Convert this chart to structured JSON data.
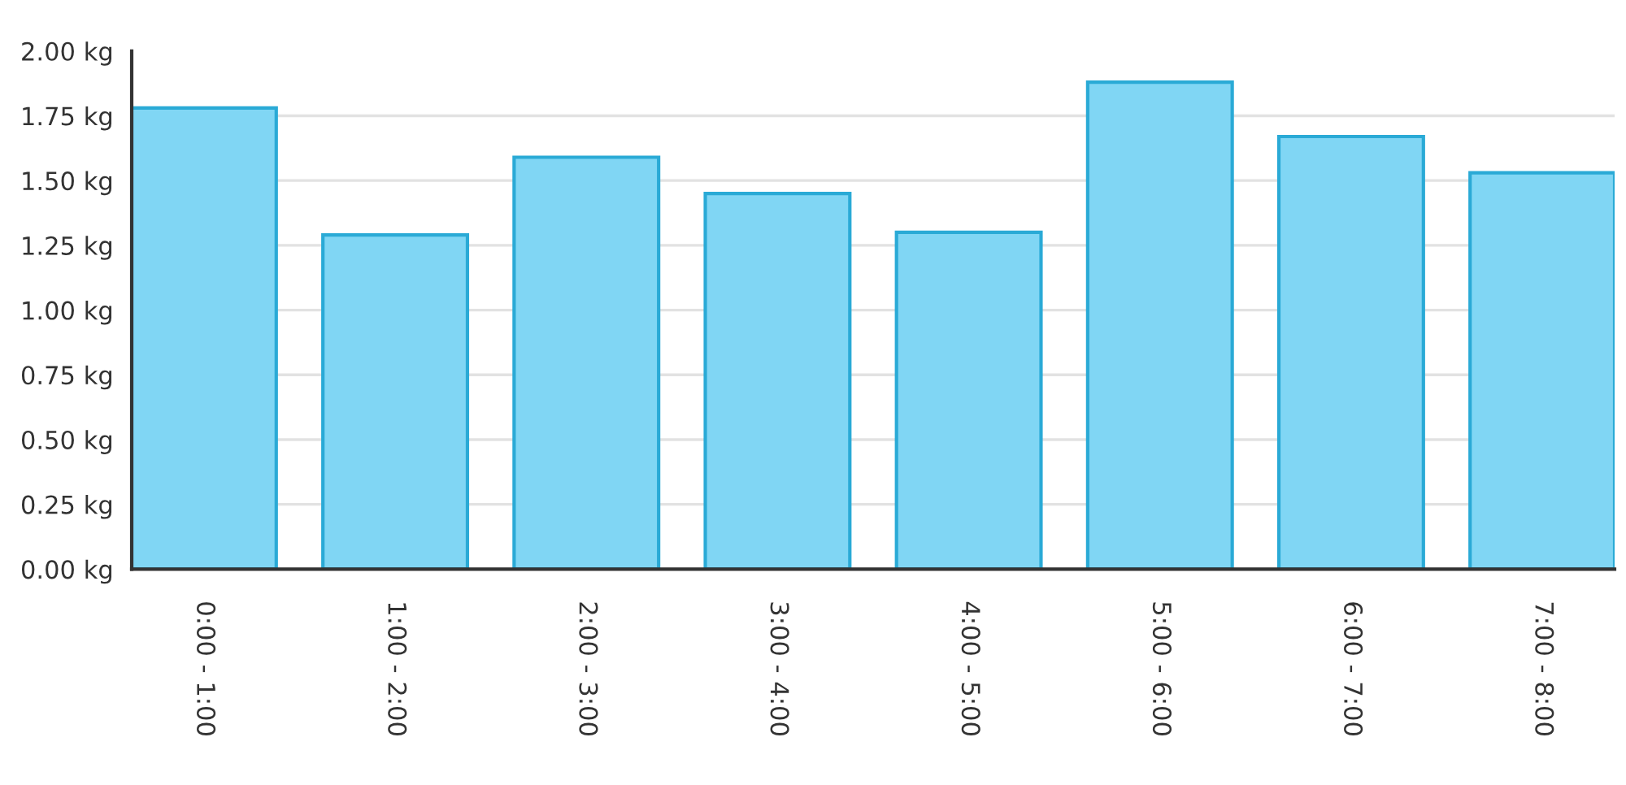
{
  "chart_data": {
    "type": "bar",
    "categories": [
      "0:00 - 1:00",
      "1:00 - 2:00",
      "2:00 - 3:00",
      "3:00 - 4:00",
      "4:00 - 5:00",
      "5:00 - 6:00",
      "6:00 - 7:00",
      "7:00 - 8:00"
    ],
    "values": [
      1.78,
      1.29,
      1.59,
      1.45,
      1.3,
      1.88,
      1.67,
      1.53
    ],
    "color": "#80d6f4",
    "ylim": [
      0,
      2.0
    ],
    "yticks": [
      {
        "value": 0,
        "label": "0.00 kg"
      },
      {
        "value": 0.25,
        "label": "0.25 kg"
      },
      {
        "value": 0.5,
        "label": "0.50 kg"
      },
      {
        "value": 0.75,
        "label": "0.75 kg"
      },
      {
        "value": 1.0,
        "label": "1.00 kg"
      },
      {
        "value": 1.25,
        "label": "1.25 kg"
      },
      {
        "value": 1.5,
        "label": "1.50 kg"
      },
      {
        "value": 1.75,
        "label": "1.75 kg"
      },
      {
        "value": 2.0,
        "label": "2.00 kg"
      }
    ],
    "grid": "y"
  }
}
